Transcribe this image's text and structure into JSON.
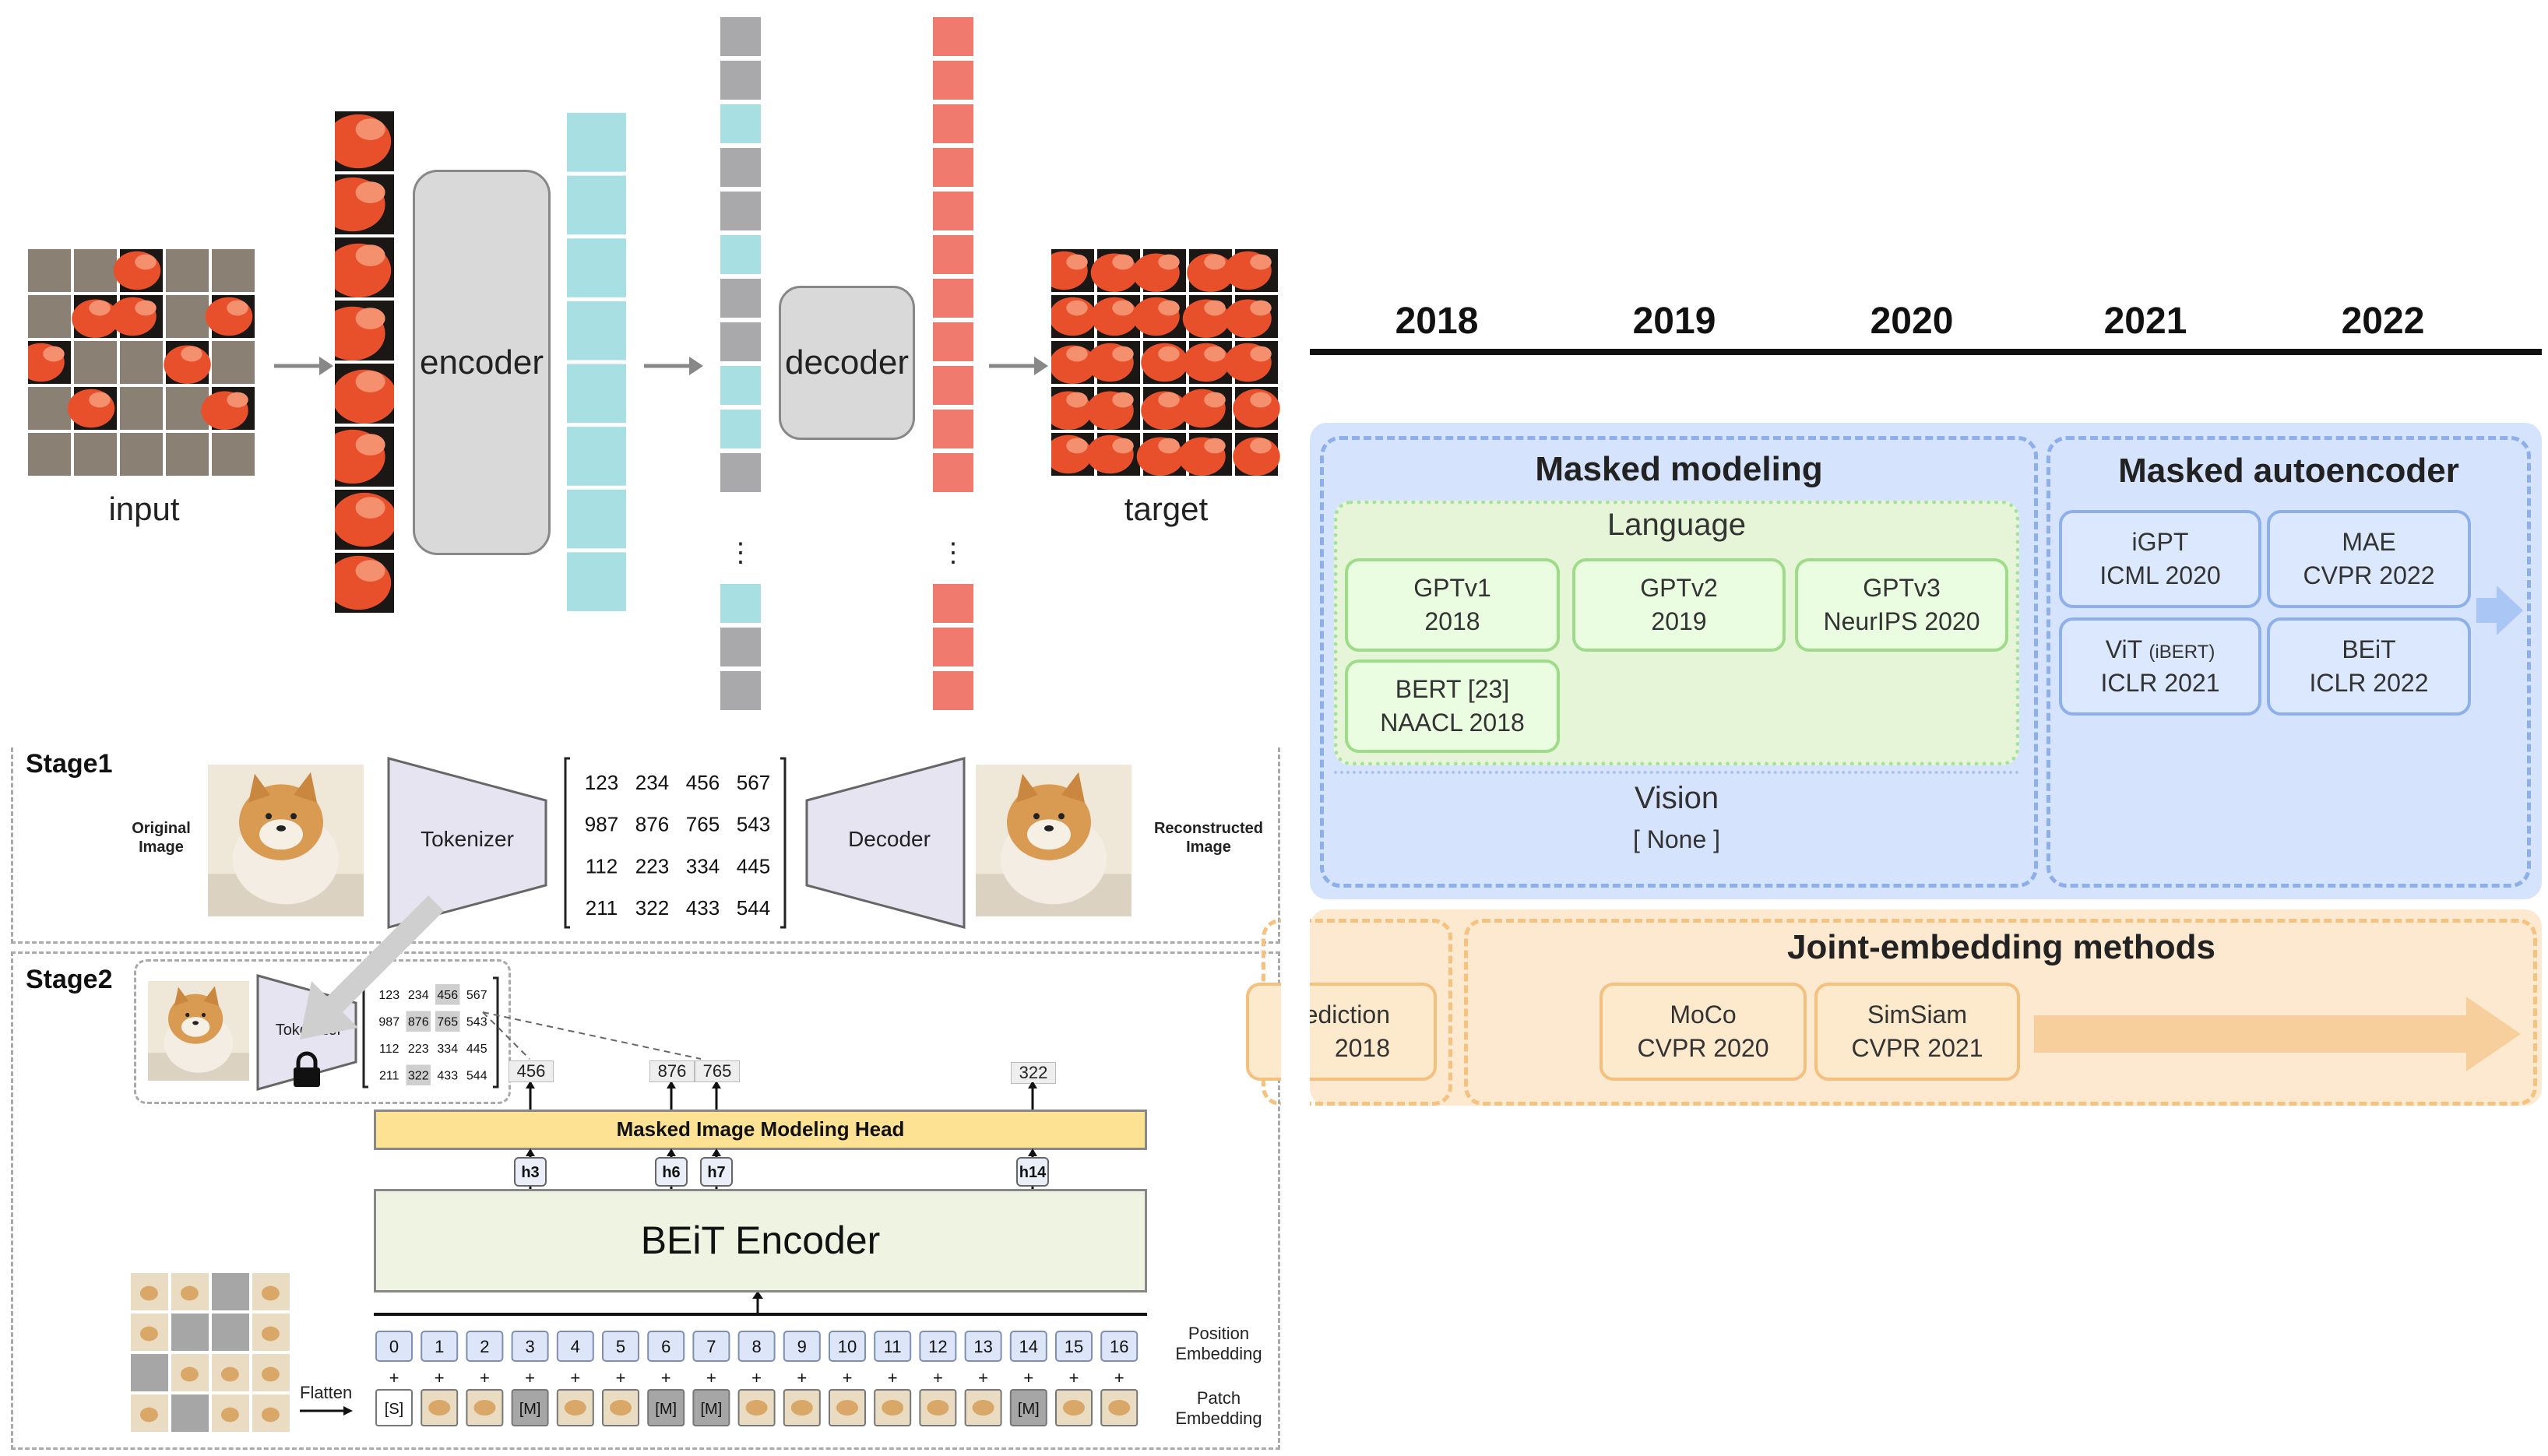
{
  "mae": {
    "input_label": "input",
    "encoder_label": "encoder",
    "decoder_label": "decoder",
    "target_label": "target",
    "ellipsis": "⋮"
  },
  "beit": {
    "stage1_label": "Stage1",
    "stage2_label": "Stage2",
    "original_image_label": "Original Image",
    "reconstructed_image_label": "Reconstructed Image",
    "tokenizer_label": "Tokenizer",
    "decoder_label": "Decoder",
    "token_matrix": [
      [
        "123",
        "234",
        "456",
        "567"
      ],
      [
        "987",
        "876",
        "765",
        "543"
      ],
      [
        "112",
        "223",
        "334",
        "445"
      ],
      [
        "211",
        "322",
        "433",
        "544"
      ]
    ],
    "predicted_tokens": [
      "456",
      "876",
      "765",
      "322"
    ],
    "mim_head_label": "Masked Image Modeling Head",
    "hidden_states": [
      "h3",
      "h6",
      "h7",
      "h14"
    ],
    "encoder_label": "BEiT Encoder",
    "flatten_label": "Flatten",
    "position_embedding_label": "Position Embedding",
    "patch_embedding_label": "Patch Embedding",
    "positions": [
      "0",
      "1",
      "2",
      "3",
      "4",
      "5",
      "6",
      "7",
      "8",
      "9",
      "10",
      "11",
      "12",
      "13",
      "14",
      "15",
      "16"
    ],
    "special_token": "[S]",
    "mask_token": "[M]",
    "masked_positions": [
      3,
      6,
      7,
      14
    ]
  },
  "timeline": {
    "years": [
      "2018",
      "2019",
      "2020",
      "2021",
      "2022"
    ],
    "masked_modeling": {
      "title": "Masked modeling",
      "language_label": "Language",
      "vision_label": "Vision",
      "vision_none": "[ None ]",
      "language_methods": [
        {
          "name": "GPTv1",
          "venue": "2018"
        },
        {
          "name": "GPTv2",
          "venue": "2019"
        },
        {
          "name": "GPTv3",
          "venue": "NeurIPS 2020"
        },
        {
          "name": "BERT [23]",
          "venue": "NAACL 2018"
        }
      ]
    },
    "masked_autoencoder": {
      "title": "Masked autoencoder",
      "methods": [
        {
          "name": "iGPT",
          "venue": "ICML 2020"
        },
        {
          "name": "MAE",
          "venue": "CVPR 2022"
        },
        {
          "name": "ViT",
          "note": "(iBERT)",
          "venue": "ICLR 2021"
        },
        {
          "name": "BEiT",
          "venue": "ICLR 2022"
        }
      ]
    },
    "joint_embedding": {
      "title": "Joint-embedding methods",
      "partial_box_line1": "rediction",
      "partial_box_line2": "2018",
      "methods": [
        {
          "name": "MoCo",
          "venue": "CVPR 2020"
        },
        {
          "name": "SimSiam",
          "venue": "CVPR 2021"
        }
      ]
    }
  },
  "colors": {
    "masked_gray": "#8a8074",
    "flamingo": "#e8502c",
    "teal": "#a8dfe2",
    "salmon": "#ef7a6d",
    "gray_token": "#a9a9ab",
    "encoder_gray": "#d9d9d9",
    "mim_yellow": "#fde293",
    "beit_green": "#eef3e2",
    "blue_panel": "#d5e3fc",
    "orange_panel": "#fde9cf"
  }
}
